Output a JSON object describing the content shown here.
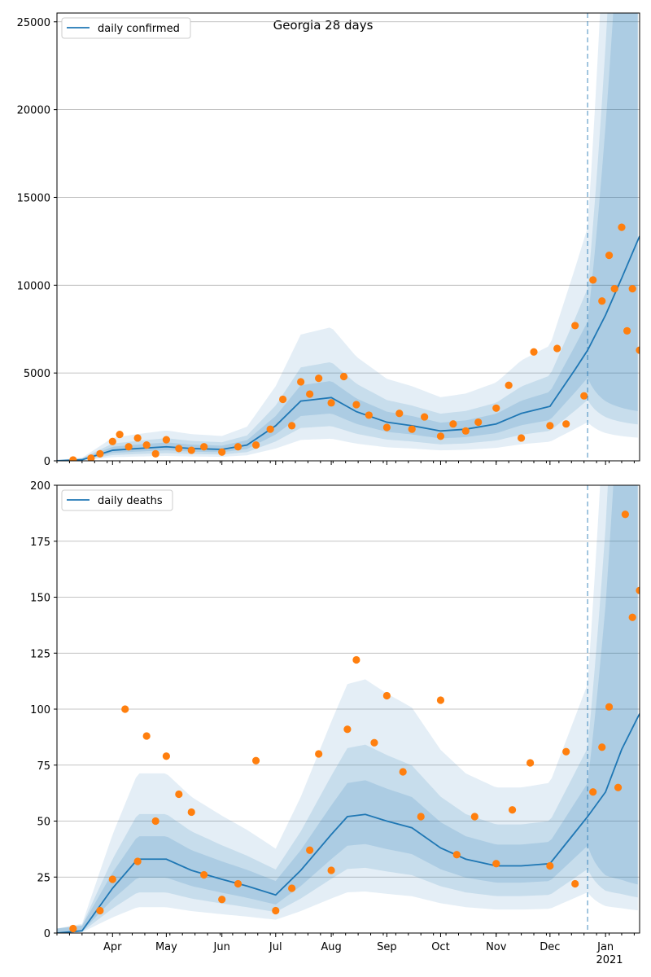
{
  "figure": {
    "title": "Georgia 28 days",
    "year_label": "2021"
  },
  "colors": {
    "line": "#1f77b4",
    "points": "#ff7f0e",
    "band": "#1f77b4",
    "grid": "#b0b0b0",
    "forecast_line": "#1f77b4"
  },
  "chart_data": [
    {
      "type": "line",
      "title": "Georgia 28 days",
      "x_type": "date",
      "x_range": [
        "2020-03-01",
        "2021-01-20"
      ],
      "x_tick_labels": [
        "Apr",
        "May",
        "Jun",
        "Jul",
        "Aug",
        "Sep",
        "Oct",
        "Nov",
        "Dec",
        "Jan"
      ],
      "ylim": [
        0,
        25500
      ],
      "y_ticks": [
        0,
        5000,
        10000,
        15000,
        20000,
        25000
      ],
      "grid": "horizontal",
      "legend": {
        "position": "top-left",
        "entries": [
          "daily confirmed"
        ]
      },
      "forecast_start": "2020-12-22",
      "series": [
        {
          "name": "daily confirmed",
          "kind": "line",
          "x": [
            "2020-03-01",
            "2020-03-15",
            "2020-04-01",
            "2020-04-15",
            "2020-05-01",
            "2020-05-15",
            "2020-06-01",
            "2020-06-15",
            "2020-07-01",
            "2020-07-15",
            "2020-08-01",
            "2020-08-15",
            "2020-09-01",
            "2020-09-15",
            "2020-10-01",
            "2020-10-15",
            "2020-11-01",
            "2020-11-15",
            "2020-12-01",
            "2020-12-15",
            "2020-12-22",
            "2021-01-01",
            "2021-01-10",
            "2021-01-20"
          ],
          "y": [
            0,
            60,
            600,
            700,
            800,
            700,
            650,
            900,
            2000,
            3400,
            3600,
            2800,
            2200,
            2000,
            1700,
            1800,
            2100,
            2700,
            3100,
            5200,
            6300,
            8300,
            10400,
            12800
          ]
        },
        {
          "name": "daily confirmed points",
          "kind": "scatter",
          "x": [
            "2020-03-10",
            "2020-03-20",
            "2020-03-25",
            "2020-04-01",
            "2020-04-05",
            "2020-04-10",
            "2020-04-15",
            "2020-04-20",
            "2020-04-25",
            "2020-05-01",
            "2020-05-08",
            "2020-05-15",
            "2020-05-22",
            "2020-06-01",
            "2020-06-10",
            "2020-06-20",
            "2020-06-28",
            "2020-07-05",
            "2020-07-10",
            "2020-07-15",
            "2020-07-20",
            "2020-07-25",
            "2020-08-01",
            "2020-08-08",
            "2020-08-15",
            "2020-08-22",
            "2020-09-01",
            "2020-09-08",
            "2020-09-15",
            "2020-09-22",
            "2020-10-01",
            "2020-10-08",
            "2020-10-15",
            "2020-10-22",
            "2020-11-01",
            "2020-11-08",
            "2020-11-15",
            "2020-11-22",
            "2020-12-01",
            "2020-12-05",
            "2020-12-10",
            "2020-12-15",
            "2020-12-20",
            "2020-12-25",
            "2020-12-30",
            "2021-01-03",
            "2021-01-06",
            "2021-01-10",
            "2021-01-13",
            "2021-01-16",
            "2021-01-20"
          ],
          "y": [
            50,
            150,
            400,
            1100,
            1500,
            800,
            1300,
            900,
            400,
            1200,
            700,
            600,
            800,
            500,
            800,
            900,
            1800,
            3500,
            2000,
            4500,
            3800,
            4700,
            3300,
            4800,
            3200,
            2600,
            1900,
            2700,
            1800,
            2500,
            1400,
            2100,
            1700,
            2200,
            3000,
            4300,
            1300,
            6200,
            2000,
            6400,
            2100,
            7700,
            3700,
            10300,
            9100,
            11700,
            9800,
            13300,
            7400,
            9800,
            6300
          ]
        }
      ]
    },
    {
      "type": "line",
      "x_type": "date",
      "x_range": [
        "2020-03-01",
        "2021-01-20"
      ],
      "x_tick_labels": [
        "Apr",
        "May",
        "Jun",
        "Jul",
        "Aug",
        "Sep",
        "Oct",
        "Nov",
        "Dec",
        "Jan"
      ],
      "ylim": [
        0,
        200
      ],
      "y_ticks": [
        0,
        25,
        50,
        75,
        100,
        125,
        150,
        175,
        200
      ],
      "grid": "horizontal",
      "legend": {
        "position": "top-left",
        "entries": [
          "daily deaths"
        ]
      },
      "forecast_start": "2020-12-22",
      "series": [
        {
          "name": "daily deaths",
          "kind": "line",
          "x": [
            "2020-03-01",
            "2020-03-15",
            "2020-04-01",
            "2020-04-15",
            "2020-05-01",
            "2020-05-15",
            "2020-06-01",
            "2020-06-15",
            "2020-07-01",
            "2020-07-15",
            "2020-08-01",
            "2020-08-10",
            "2020-08-20",
            "2020-09-01",
            "2020-09-15",
            "2020-10-01",
            "2020-10-15",
            "2020-11-01",
            "2020-11-15",
            "2020-12-01",
            "2020-12-15",
            "2020-12-22",
            "2021-01-01",
            "2021-01-10",
            "2021-01-20"
          ],
          "y": [
            0,
            1,
            20,
            33,
            33,
            28,
            24,
            21,
            17,
            28,
            44,
            52,
            53,
            50,
            47,
            38,
            33,
            30,
            30,
            31,
            45,
            52,
            63,
            82,
            98
          ]
        },
        {
          "name": "daily deaths points",
          "kind": "scatter",
          "x": [
            "2020-03-10",
            "2020-03-25",
            "2020-04-01",
            "2020-04-08",
            "2020-04-15",
            "2020-04-20",
            "2020-04-25",
            "2020-05-01",
            "2020-05-08",
            "2020-05-15",
            "2020-05-22",
            "2020-06-01",
            "2020-06-10",
            "2020-06-20",
            "2020-07-01",
            "2020-07-10",
            "2020-07-20",
            "2020-07-25",
            "2020-08-01",
            "2020-08-10",
            "2020-08-15",
            "2020-08-25",
            "2020-09-01",
            "2020-09-10",
            "2020-09-20",
            "2020-10-01",
            "2020-10-10",
            "2020-10-20",
            "2020-11-01",
            "2020-11-10",
            "2020-11-20",
            "2020-12-01",
            "2020-12-10",
            "2020-12-15",
            "2020-12-25",
            "2020-12-30",
            "2021-01-03",
            "2021-01-08",
            "2021-01-12",
            "2021-01-16",
            "2021-01-20"
          ],
          "y": [
            2,
            10,
            24,
            100,
            32,
            88,
            50,
            79,
            62,
            54,
            26,
            15,
            22,
            77,
            10,
            20,
            37,
            80,
            28,
            91,
            122,
            85,
            106,
            72,
            52,
            104,
            35,
            52,
            31,
            55,
            76,
            30,
            81,
            22,
            63,
            83,
            101,
            65,
            187,
            141,
            153
          ]
        }
      ]
    }
  ]
}
